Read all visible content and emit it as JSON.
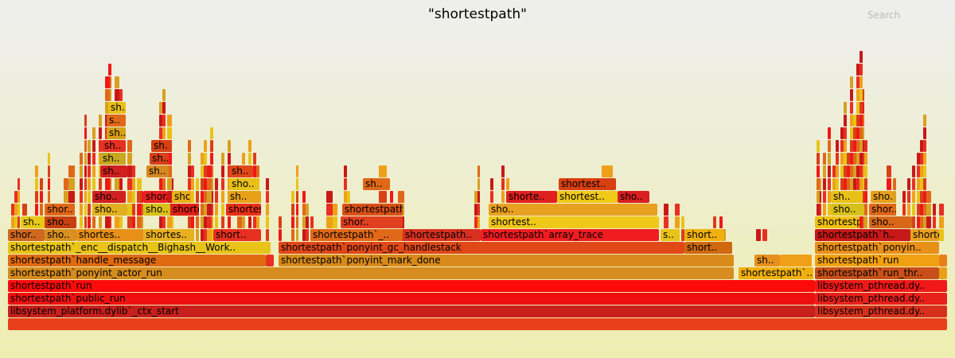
{
  "title": "\"shortestpath\"",
  "search_label": "Search",
  "frames": [
    {
      "text": "",
      "color": "#e8401a"
    },
    {
      "text": "libsystem_platform.dylib`_ctx_start",
      "color": "#c8201c"
    },
    {
      "text": "libsystem_pthread.dy..",
      "color": "#d6301c"
    },
    {
      "text": "shortestpath`public_run",
      "color": "#ee1010"
    },
    {
      "text": "libsystem_pthread.dy..",
      "color": "#e8201a"
    },
    {
      "text": "shortestpath`run",
      "color": "#ff0a0a"
    },
    {
      "text": "libsystem_pthread.dy..",
      "color": "#f01818"
    },
    {
      "text": "shortestpath`ponyint_actor_run",
      "color": "#d68c1e"
    },
    {
      "text": "shortestpath`...",
      "color": "#f0b010"
    },
    {
      "text": "shortestpath`run_thr..",
      "color": "#c85018"
    },
    {
      "text": "",
      "color": "#e8a018"
    },
    {
      "text": "shortestpath`handle_message",
      "color": "#e06a10"
    },
    {
      "text": "",
      "color": "#e83020"
    },
    {
      "text": "shortestpath`ponyint_mark_done",
      "color": "#d88a1a"
    },
    {
      "text": "sh..",
      "color": "#e8901c"
    },
    {
      "text": "",
      "color": "#f0a018"
    },
    {
      "text": "shortestpath`run",
      "color": "#f0a010"
    },
    {
      "text": "",
      "color": "#e88018"
    },
    {
      "text": "shortestpath`_enc__dispatch__Bighash__Work..",
      "color": "#e8c418"
    },
    {
      "text": "shortestpath`ponyint_gc_handlestack",
      "color": "#e04818"
    },
    {
      "text": "short..",
      "color": "#d06810"
    },
    {
      "text": "shortestpath`ponyin..",
      "color": "#e89018"
    },
    {
      "text": "shor..",
      "color": "#d06820"
    },
    {
      "text": "sho..",
      "color": "#d89020"
    },
    {
      "text": "shortes..",
      "color": "#e89018"
    },
    {
      "text": "shortes..",
      "color": "#e8b020"
    },
    {
      "text": "short..",
      "color": "#e83020"
    },
    {
      "text": "shortestpath`_..",
      "color": "#e06818"
    },
    {
      "text": "shortestpath..",
      "color": "#d83020"
    },
    {
      "text": "shortestpath`array_trace",
      "color": "#f01c20"
    },
    {
      "text": "s..",
      "color": "#e8c418"
    },
    {
      "text": "short..",
      "color": "#f0b010"
    },
    {
      "text": "shortestpath`h..",
      "color": "#c81818"
    },
    {
      "text": "shortestpath`..",
      "color": "#e8a020"
    },
    {
      "text": "sh..",
      "color": "#e8c818"
    },
    {
      "text": "sho..",
      "color": "#c84010"
    },
    {
      "text": "shor..",
      "color": "#e04020"
    },
    {
      "text": "shortest..",
      "color": "#f0c818"
    },
    {
      "text": "shortestpath`encore_trace_ob..",
      "color": "#f0c010"
    },
    {
      "text": "sho..",
      "color": "#d86818"
    },
    {
      "text": "sho..",
      "color": "#e0b020"
    },
    {
      "text": "shor..",
      "color": "#e06818"
    },
    {
      "text": "sho..",
      "color": "#d8c018"
    },
    {
      "text": "shorte..",
      "color": "#e02018"
    },
    {
      "text": "shortest..",
      "color": "#e83018"
    },
    {
      "text": "shortestpath`ponyint_gc_mar..",
      "color": "#d85018"
    },
    {
      "text": "sho..",
      "color": "#e8a020"
    },
    {
      "text": "sho..",
      "color": "#d8c018"
    },
    {
      "text": "shor..",
      "color": "#e06818"
    },
    {
      "text": "sho..",
      "color": "#d02020"
    },
    {
      "text": "shor..",
      "color": "#e82020"
    },
    {
      "text": "sho..",
      "color": "#e8b018"
    },
    {
      "text": "sh..",
      "color": "#e8a018"
    },
    {
      "text": "shorte..",
      "color": "#e02020"
    },
    {
      "text": "shortest..",
      "color": "#f0c818"
    },
    {
      "text": "sho..",
      "color": "#d82020"
    },
    {
      "text": "sh..",
      "color": "#e8c018"
    },
    {
      "text": "sho..",
      "color": "#e8a018"
    },
    {
      "text": "sho..",
      "color": "#e8c018"
    },
    {
      "text": "sh..",
      "color": "#e06818"
    },
    {
      "text": "sh..",
      "color": "#d02020"
    },
    {
      "text": "sh..",
      "color": "#d88820"
    },
    {
      "text": "sh..",
      "color": "#e04818"
    },
    {
      "text": "shortest..",
      "color": "#d84010"
    },
    {
      "text": "sh..",
      "color": "#c8a820"
    },
    {
      "text": "sh..",
      "color": "#e83020"
    },
    {
      "text": "sh..",
      "color": "#d84018"
    },
    {
      "text": "sh..",
      "color": "#d8a018"
    },
    {
      "text": "s..",
      "color": "#e06818"
    },
    {
      "text": "sh..",
      "color": "#e8c018"
    },
    {
      "text": "sh..",
      "color": "#d84010"
    }
  ]
}
